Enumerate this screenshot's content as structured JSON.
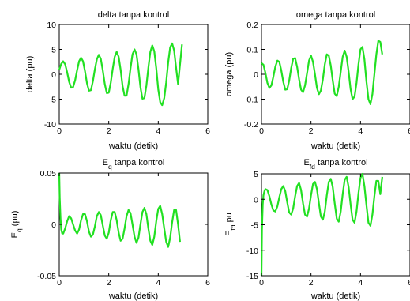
{
  "chart_data": [
    {
      "type": "line",
      "title": "delta tanpa kontrol",
      "title_main": "delta tanpa kontrol",
      "title_sub": "",
      "title_tail": "",
      "xlabel": "waktu (detik)",
      "ylabel": "delta (pu)",
      "ylabel_main": "delta (pu)",
      "ylabel_sub": "",
      "ylabel_tail": "",
      "xlim": [
        0,
        6
      ],
      "ylim": [
        -10,
        10
      ],
      "xticks": [
        0,
        2,
        4,
        6
      ],
      "yticks": [
        -10,
        -5,
        0,
        5,
        10
      ],
      "xtick_labels": [
        "0",
        "2",
        "4",
        "6"
      ],
      "ytick_labels": [
        "-10",
        "-5",
        "0",
        "5",
        "10"
      ],
      "x": [
        0,
        0.08,
        0.16,
        0.24,
        0.32,
        0.4,
        0.48,
        0.56,
        0.64,
        0.72,
        0.8,
        0.88,
        0.96,
        1.04,
        1.12,
        1.2,
        1.28,
        1.36,
        1.44,
        1.52,
        1.6,
        1.68,
        1.76,
        1.84,
        1.92,
        2.0,
        2.08,
        2.16,
        2.24,
        2.32,
        2.4,
        2.48,
        2.56,
        2.64,
        2.72,
        2.8,
        2.88,
        2.96,
        3.04,
        3.12,
        3.2,
        3.28,
        3.36,
        3.44,
        3.52,
        3.6,
        3.68,
        3.76,
        3.84,
        3.92,
        4.0,
        4.08,
        4.16,
        4.24,
        4.32,
        4.4,
        4.48,
        4.56,
        4.64,
        4.72,
        4.8,
        4.88,
        4.96
      ],
      "values": [
        0.9,
        2.1,
        2.6,
        2.0,
        0.4,
        -1.5,
        -2.7,
        -2.6,
        -1.2,
        0.8,
        2.6,
        3.3,
        2.6,
        0.6,
        -1.8,
        -3.3,
        -3.2,
        -1.4,
        1.0,
        3.0,
        3.9,
        3.1,
        0.8,
        -2.0,
        -3.8,
        -3.7,
        -1.7,
        1.1,
        3.5,
        4.5,
        3.5,
        0.9,
        -2.4,
        -4.3,
        -4.3,
        -2.0,
        1.2,
        4.0,
        5.0,
        4.0,
        1.0,
        -2.6,
        -4.9,
        -4.8,
        -2.3,
        1.3,
        4.5,
        5.8,
        4.6,
        1.2,
        -3.0,
        -5.6,
        -6.2,
        -4.8,
        -1.6,
        2.4,
        5.4,
        6.2,
        4.8,
        1.3,
        -2.0,
        2.0,
        6.0
      ],
      "series_color": "#22e022"
    },
    {
      "type": "line",
      "title": "omega tanpa kontrol",
      "title_main": "omega tanpa kontrol",
      "title_sub": "",
      "title_tail": "",
      "xlabel": "waktu (detik)",
      "ylabel": "omega (pu)",
      "ylabel_main": "omega (pu)",
      "ylabel_sub": "",
      "ylabel_tail": "",
      "xlim": [
        0,
        6
      ],
      "ylim": [
        -0.2,
        0.2
      ],
      "xticks": [
        0,
        2,
        4,
        6
      ],
      "yticks": [
        -0.2,
        -0.1,
        0,
        0.1,
        0.2
      ],
      "xtick_labels": [
        "0",
        "2",
        "4",
        "6"
      ],
      "ytick_labels": [
        "-0.2",
        "-0.1",
        "0",
        "0.1",
        "0.2"
      ],
      "x": [
        0,
        0.08,
        0.16,
        0.24,
        0.32,
        0.4,
        0.48,
        0.56,
        0.64,
        0.72,
        0.8,
        0.88,
        0.96,
        1.04,
        1.12,
        1.2,
        1.28,
        1.36,
        1.44,
        1.52,
        1.6,
        1.68,
        1.76,
        1.84,
        1.92,
        2.0,
        2.08,
        2.16,
        2.24,
        2.32,
        2.4,
        2.48,
        2.56,
        2.64,
        2.72,
        2.8,
        2.88,
        2.96,
        3.04,
        3.12,
        3.2,
        3.28,
        3.36,
        3.44,
        3.52,
        3.6,
        3.68,
        3.76,
        3.84,
        3.92,
        4.0,
        4.08,
        4.16,
        4.24,
        4.32,
        4.4,
        4.48,
        4.56,
        4.64,
        4.72,
        4.8,
        4.88
      ],
      "values": [
        0.045,
        0.038,
        0.005,
        -0.035,
        -0.055,
        -0.045,
        -0.01,
        0.03,
        0.055,
        0.05,
        0.015,
        -0.03,
        -0.062,
        -0.06,
        -0.025,
        0.025,
        0.062,
        0.065,
        0.03,
        -0.02,
        -0.062,
        -0.072,
        -0.045,
        0.005,
        0.055,
        0.075,
        0.05,
        0.0,
        -0.055,
        -0.08,
        -0.065,
        -0.02,
        0.04,
        0.08,
        0.075,
        0.035,
        -0.025,
        -0.078,
        -0.088,
        -0.05,
        0.01,
        0.07,
        0.095,
        0.07,
        0.01,
        -0.06,
        -0.1,
        -0.09,
        -0.035,
        0.04,
        0.1,
        0.11,
        0.06,
        -0.03,
        -0.1,
        -0.12,
        -0.08,
        0.0,
        0.08,
        0.135,
        0.13,
        0.08
      ],
      "series_color": "#22e022"
    },
    {
      "type": "line",
      "title": "Eq tanpa kontrol",
      "title_main": "E",
      "title_sub": "q",
      "title_tail": " tanpa kontrol",
      "xlabel": "waktu (detik)",
      "ylabel": "Eq (pu)",
      "ylabel_main": "E",
      "ylabel_sub": "q",
      "ylabel_tail": " (pu)",
      "xlim": [
        0,
        6
      ],
      "ylim": [
        -0.05,
        0.05
      ],
      "xticks": [
        0,
        2,
        4,
        6
      ],
      "yticks": [
        -0.05,
        0,
        0.05
      ],
      "xtick_labels": [
        "0",
        "2",
        "4",
        "6"
      ],
      "ytick_labels": [
        "-0.05",
        "0",
        "0.05"
      ],
      "x": [
        0,
        0.02,
        0.05,
        0.08,
        0.12,
        0.16,
        0.24,
        0.32,
        0.4,
        0.48,
        0.56,
        0.64,
        0.72,
        0.8,
        0.88,
        0.96,
        1.04,
        1.12,
        1.2,
        1.28,
        1.36,
        1.44,
        1.52,
        1.6,
        1.68,
        1.76,
        1.84,
        1.92,
        2.0,
        2.08,
        2.16,
        2.24,
        2.32,
        2.4,
        2.48,
        2.56,
        2.64,
        2.72,
        2.8,
        2.88,
        2.96,
        3.04,
        3.12,
        3.2,
        3.28,
        3.36,
        3.44,
        3.52,
        3.6,
        3.68,
        3.76,
        3.84,
        3.92,
        4.0,
        4.08,
        4.16,
        4.24,
        4.32,
        4.4,
        4.48,
        4.56,
        4.64,
        4.72,
        4.8,
        4.88
      ],
      "values": [
        0.05,
        0.026,
        0.006,
        -0.005,
        -0.009,
        -0.009,
        -0.004,
        0.003,
        0.008,
        0.006,
        0.0,
        -0.006,
        -0.009,
        -0.005,
        0.004,
        0.01,
        0.01,
        0.003,
        -0.007,
        -0.012,
        -0.01,
        -0.002,
        0.008,
        0.012,
        0.009,
        -0.001,
        -0.011,
        -0.014,
        -0.008,
        0.004,
        0.012,
        0.012,
        0.004,
        -0.008,
        -0.016,
        -0.014,
        -0.004,
        0.008,
        0.014,
        0.011,
        0.0,
        -0.012,
        -0.018,
        -0.013,
        0.0,
        0.012,
        0.016,
        0.01,
        -0.004,
        -0.016,
        -0.02,
        -0.012,
        0.003,
        0.015,
        0.018,
        0.01,
        -0.004,
        -0.017,
        -0.022,
        -0.013,
        0.002,
        0.014,
        0.014,
        0.0,
        -0.017
      ],
      "series_color": "#22e022"
    },
    {
      "type": "line",
      "title": "Efd tanpa kontrol",
      "title_main": "E",
      "title_sub": "fd",
      "title_tail": " tanpa kontrol",
      "xlabel": "waktu (detik)",
      "ylabel": "Efd pu",
      "ylabel_main": "E",
      "ylabel_sub": "fd",
      "ylabel_tail": " pu",
      "xlim": [
        0,
        6
      ],
      "ylim": [
        -15,
        5
      ],
      "xticks": [
        0,
        2,
        4,
        6
      ],
      "yticks": [
        -15,
        -10,
        -5,
        0,
        5
      ],
      "xtick_labels": [
        "0",
        "2",
        "4",
        "6"
      ],
      "ytick_labels": [
        "-15",
        "-10",
        "-5",
        "0",
        "5"
      ],
      "x": [
        0,
        0.02,
        0.05,
        0.08,
        0.12,
        0.16,
        0.24,
        0.32,
        0.4,
        0.48,
        0.56,
        0.64,
        0.72,
        0.8,
        0.88,
        0.96,
        1.04,
        1.12,
        1.2,
        1.28,
        1.36,
        1.44,
        1.52,
        1.6,
        1.68,
        1.76,
        1.84,
        1.92,
        2.0,
        2.08,
        2.16,
        2.24,
        2.32,
        2.4,
        2.48,
        2.56,
        2.64,
        2.72,
        2.8,
        2.88,
        2.96,
        3.04,
        3.12,
        3.2,
        3.28,
        3.36,
        3.44,
        3.52,
        3.6,
        3.68,
        3.76,
        3.84,
        3.92,
        4.0,
        4.08,
        4.16,
        4.24,
        4.32,
        4.4,
        4.48,
        4.56,
        4.64,
        4.72,
        4.8,
        4.88
      ],
      "values": [
        -15,
        -6,
        -1,
        0.8,
        1.6,
        2.0,
        1.8,
        0.6,
        -1.0,
        -2.2,
        -2.4,
        -1.4,
        0.4,
        2.0,
        2.6,
        1.6,
        -0.6,
        -2.6,
        -3.0,
        -1.8,
        0.6,
        2.6,
        3.2,
        1.8,
        -0.8,
        -3.0,
        -3.4,
        -1.8,
        0.8,
        3.0,
        3.4,
        2.0,
        -0.8,
        -3.4,
        -4.0,
        -2.4,
        0.8,
        3.4,
        4.0,
        2.4,
        -0.8,
        -3.8,
        -4.4,
        -2.4,
        1.0,
        3.8,
        4.4,
        2.4,
        -1.0,
        -4.0,
        -4.6,
        -2.4,
        1.2,
        4.2,
        5.0,
        2.6,
        -1.2,
        -4.6,
        -5.2,
        -3.0,
        0.6,
        3.6,
        3.6,
        1.0,
        4.4
      ],
      "series_color": "#22e022"
    }
  ]
}
